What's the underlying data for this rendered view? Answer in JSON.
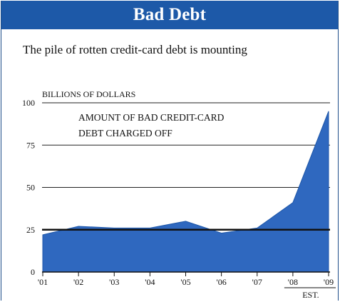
{
  "header": {
    "title": "Bad Debt"
  },
  "subtitle": "The pile of rotten credit-card debt is mounting",
  "chart_data": {
    "type": "area",
    "title": "Bad Debt",
    "subtitle": "The pile of rotten credit-card debt is mounting",
    "ylabel": "BILLIONS OF DOLLARS",
    "annotation": [
      "AMOUNT OF BAD CREDIT-CARD",
      "DEBT CHARGED OFF"
    ],
    "x_ticks": [
      "'01",
      "'02",
      "'03",
      "'04",
      "'05",
      "'06",
      "'07",
      "'08",
      "'09"
    ],
    "x_tick_note": "EST.",
    "y_ticks": [
      0,
      25,
      50,
      75,
      100
    ],
    "ylim": [
      0,
      100
    ],
    "grid": true,
    "reference_line": 25,
    "x": [
      2001,
      2002,
      2003,
      2004,
      2005,
      2006,
      2007,
      2008,
      2009
    ],
    "values": [
      22,
      27,
      26,
      26,
      30,
      23,
      26,
      41,
      95
    ],
    "colors": {
      "header": "#1d59a8",
      "area": "#2f68bf",
      "area_edge": "#1d56a8",
      "grid": "#222222"
    }
  }
}
